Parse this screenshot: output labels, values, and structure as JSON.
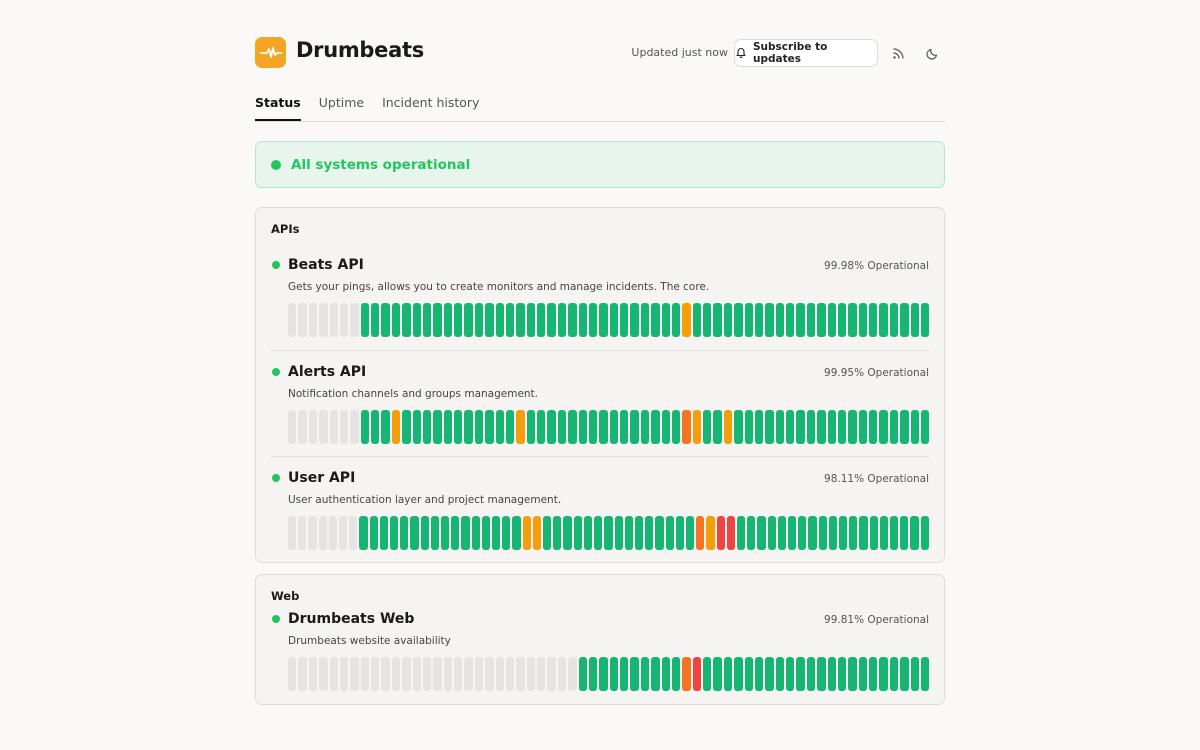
{
  "brand": {
    "name": "Drumbeats",
    "logo_icon": "pulse-icon",
    "accent": "#f5a524"
  },
  "header": {
    "updated": "Updated just now",
    "subscribe_label": "Subscribe to updates",
    "rss_icon": "rss-icon",
    "theme_icon": "moon-icon"
  },
  "tabs": [
    {
      "label": "Status",
      "active": true
    },
    {
      "label": "Uptime",
      "active": false
    },
    {
      "label": "Incident history",
      "active": false
    }
  ],
  "banner": {
    "text": "All systems operational",
    "color": "#22c55e"
  },
  "status_colors": {
    "g": "#16b573",
    "e": "#e5e4e2",
    "o": "#f59e0b",
    "d": "#f37421",
    "r": "#ef4444"
  },
  "groups": [
    {
      "title": "APIs",
      "services": [
        {
          "name": "Beats API",
          "status": "99.98% Operational",
          "description": "Gets your pings, allows you to create monitors and manage incidents. The core.",
          "bars": "eeeeeeegggggggggggggggggggggggggggggggoggggggggggggggggggggggg"
        },
        {
          "name": "Alerts API",
          "status": "99.95% Operational",
          "description": "Notification channels and groups management.",
          "bars": "eeeeeeegggogggggggggggogggggggggggggggdoggoggggggggggggggggggg"
        },
        {
          "name": "User API",
          "status": "98.11% Operational",
          "description": "User authentication layer and project management.",
          "bars": "eeeeeeeggggggggggggggggoogggggggggggggggdorrggggggggggggggggggg"
        }
      ]
    },
    {
      "title": "Web",
      "services": [
        {
          "name": "Drumbeats Web",
          "status": "99.81% Operational",
          "description": "Drumbeats website availability",
          "bars": "eeeeeeeeeeeeeeeeeeeeeeeeeeeeggggggggggdrgggggggggggggggggggggg"
        }
      ]
    }
  ]
}
